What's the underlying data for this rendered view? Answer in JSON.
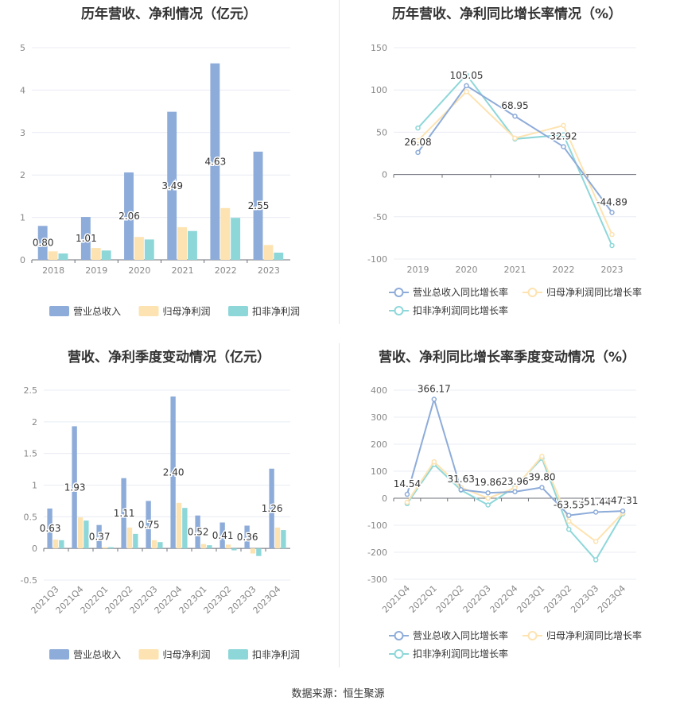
{
  "charts": {
    "annual_bar": {
      "title": "历年营收、净利情况（亿元）",
      "legend": [
        "营业总收入",
        "归母净利润",
        "扣非净利润"
      ],
      "colors": [
        "#8eacd9",
        "#fde3b1",
        "#8ed7d9"
      ]
    },
    "annual_line": {
      "title": "历年营收、净利同比增长率情况（%）",
      "legend": [
        "营业总收入同比增长率",
        "归母净利润同比增长率",
        "扣非净利润同比增长率"
      ],
      "colors": [
        "#8eacd9",
        "#fde3b1",
        "#8ed7d9"
      ]
    },
    "quarter_bar": {
      "title": "营收、净利季度变动情况（亿元）",
      "legend": [
        "营业总收入",
        "归母净利润",
        "扣非净利润"
      ],
      "colors": [
        "#8eacd9",
        "#fde3b1",
        "#8ed7d9"
      ]
    },
    "quarter_line": {
      "title": "营收、净利同比增长率季度变动情况（%）",
      "legend": [
        "营业总收入同比增长率",
        "归母净利润同比增长率",
        "扣非净利润同比增长率"
      ],
      "colors": [
        "#8eacd9",
        "#fde3b1",
        "#8ed7d9"
      ]
    }
  },
  "chart_data": [
    {
      "type": "bar",
      "title": "历年营收、净利情况（亿元）",
      "categories": [
        "2018",
        "2019",
        "2020",
        "2021",
        "2022",
        "2023"
      ],
      "series": [
        {
          "name": "营业总收入",
          "values": [
            0.8,
            1.01,
            2.06,
            3.49,
            4.63,
            2.55
          ],
          "labels": [
            "0.80",
            "1.01",
            "2.06",
            "3.49",
            "4.63",
            "2.55"
          ]
        },
        {
          "name": "归母净利润",
          "values": [
            0.2,
            0.28,
            0.54,
            0.77,
            1.22,
            0.35
          ]
        },
        {
          "name": "扣非净利润",
          "values": [
            0.15,
            0.22,
            0.48,
            0.68,
            0.99,
            0.17
          ]
        }
      ],
      "ylim": [
        0,
        5
      ],
      "yticks": [
        0,
        1,
        2,
        3,
        4,
        5
      ],
      "legend_position": "bottom"
    },
    {
      "type": "line",
      "title": "历年营收、净利同比增长率情况（%）",
      "categories": [
        "2019",
        "2020",
        "2021",
        "2022",
        "2023"
      ],
      "series": [
        {
          "name": "营业总收入同比增长率",
          "values": [
            26.08,
            105.05,
            68.95,
            32.92,
            -44.89
          ],
          "labels": [
            "26.08",
            "105.05",
            "68.95",
            "32.92",
            "-44.89"
          ]
        },
        {
          "name": "归母净利润同比增长率",
          "values": [
            40,
            98,
            43,
            58,
            -71
          ]
        },
        {
          "name": "扣非净利润同比增长率",
          "values": [
            55,
            118,
            42,
            47,
            -84
          ]
        }
      ],
      "ylim": [
        -100,
        150
      ],
      "yticks": [
        -100,
        -50,
        0,
        50,
        100,
        150
      ],
      "legend_position": "bottom"
    },
    {
      "type": "bar",
      "title": "营收、净利季度变动情况（亿元）",
      "categories": [
        "2021Q3",
        "2021Q4",
        "2022Q1",
        "2022Q2",
        "2022Q3",
        "2022Q4",
        "2023Q1",
        "2023Q2",
        "2023Q3",
        "2023Q4"
      ],
      "series": [
        {
          "name": "营业总收入",
          "values": [
            0.63,
            1.93,
            0.37,
            1.11,
            0.75,
            2.4,
            0.52,
            0.41,
            0.36,
            1.26
          ],
          "labels": [
            "0.63",
            "1.93",
            "0.37",
            "1.11",
            "0.75",
            "2.40",
            "0.52",
            "0.41",
            "0.36",
            "1.26"
          ]
        },
        {
          "name": "归母净利润",
          "values": [
            0.14,
            0.49,
            0.02,
            0.33,
            0.13,
            0.72,
            0.07,
            0.06,
            -0.08,
            0.33
          ]
        },
        {
          "name": "扣非净利润",
          "values": [
            0.13,
            0.44,
            0.02,
            0.23,
            0.1,
            0.64,
            0.05,
            -0.03,
            -0.12,
            0.29
          ]
        }
      ],
      "ylim": [
        -0.5,
        2.5
      ],
      "yticks": [
        -0.5,
        0,
        0.5,
        1,
        1.5,
        2,
        2.5
      ],
      "legend_position": "bottom"
    },
    {
      "type": "line",
      "title": "营收、净利同比增长率季度变动情况（%）",
      "categories": [
        "2021Q4",
        "2022Q1",
        "2022Q2",
        "2022Q3",
        "2022Q4",
        "2023Q1",
        "2023Q2",
        "2023Q3",
        "2023Q4"
      ],
      "series": [
        {
          "name": "营业总收入同比增长率",
          "values": [
            14.54,
            366.17,
            31.63,
            19.86,
            23.96,
            39.8,
            -63.53,
            -51.44,
            -47.31
          ],
          "labels": [
            "14.54",
            "366.17",
            "31.63",
            "19.86",
            "23.96",
            "39.80",
            "-63.53",
            "-51.44",
            "-47.31"
          ]
        },
        {
          "name": "归母净利润同比增长率",
          "values": [
            -15,
            135,
            40,
            0,
            38,
            155,
            -85,
            -160,
            -55
          ]
        },
        {
          "name": "扣非净利润同比增长率",
          "values": [
            -20,
            125,
            30,
            -25,
            42,
            148,
            -115,
            -228,
            -58
          ]
        }
      ],
      "ylim": [
        -300,
        400
      ],
      "yticks": [
        -300,
        -200,
        -100,
        0,
        100,
        200,
        300,
        400
      ],
      "legend_position": "bottom"
    }
  ],
  "footer": "数据来源：恒生聚源"
}
